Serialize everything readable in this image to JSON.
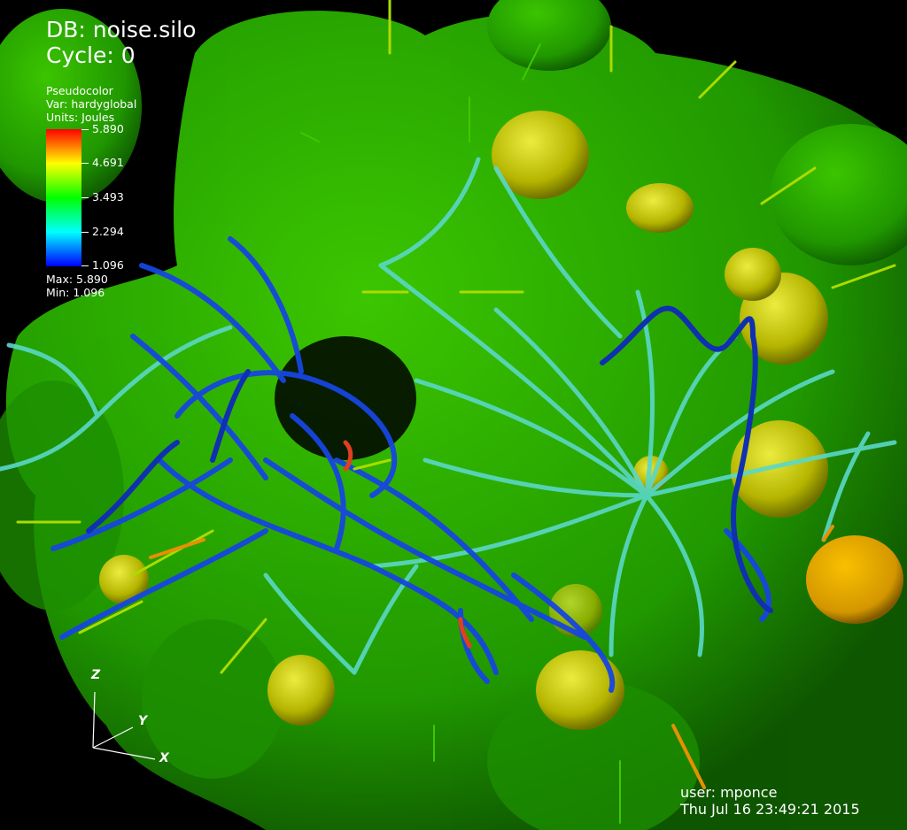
{
  "header": {
    "db": "DB: noise.silo",
    "cycle": "Cycle: 0"
  },
  "legend": {
    "plot_type": "Pseudocolor",
    "variable": "Var: hardyglobal",
    "units": "Units: Joules",
    "ticks": [
      "5.890",
      "4.691",
      "3.493",
      "2.294",
      "1.096"
    ],
    "max": "Max:  5.890",
    "min": "Min:  1.096",
    "colormap": [
      "#ff0000",
      "#ffff00",
      "#00ff00",
      "#00ffff",
      "#0000ff"
    ]
  },
  "triad": {
    "z": "Z",
    "y": "Y",
    "x": "X"
  },
  "footer": {
    "user": "user: mponce",
    "date": "Thu Jul 16 23:49:21 2015"
  },
  "scene": {
    "background": "#000000",
    "isosurface_color": "#2fb400",
    "blob_color": "#c8c800",
    "streamline_colors": [
      "#0a2ad0",
      "#1e6ee6",
      "#3cc8c8",
      "#60e0c0"
    ]
  }
}
